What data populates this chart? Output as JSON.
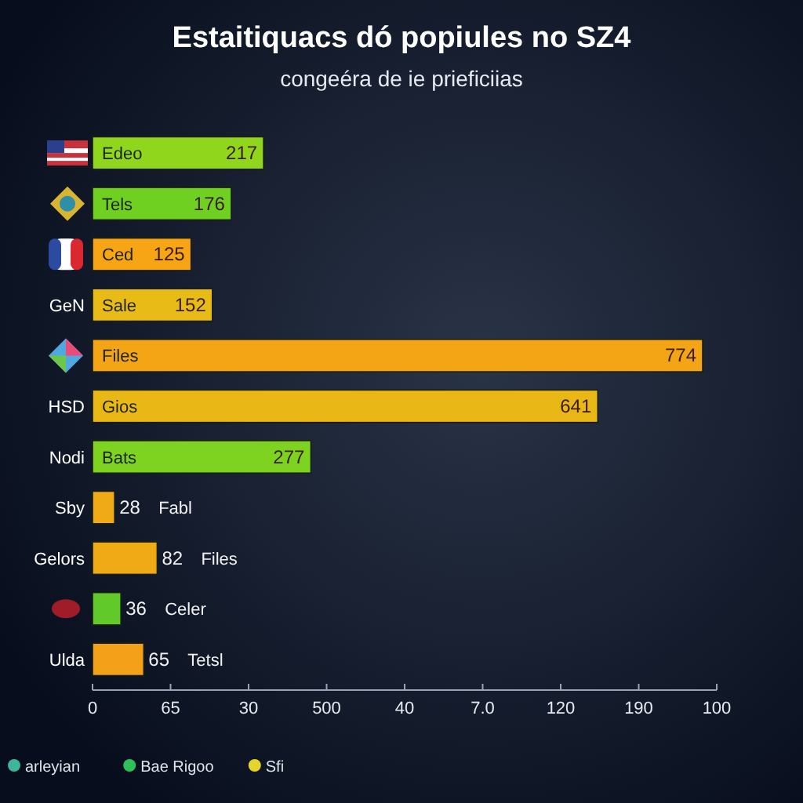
{
  "chart_data": {
    "type": "bar",
    "orientation": "horizontal",
    "title": "Estaitiquacs dó popiules no SZ4",
    "subtitle": "congeéra de ie prieficiias",
    "categories": [
      null,
      null,
      null,
      "GeN",
      null,
      "HSD",
      "Nodi",
      "Sby",
      "Gelors",
      null,
      "Ulda"
    ],
    "data_labels": true,
    "annotations": [
      "Edeo",
      "Tels",
      "Ced",
      "Sale",
      "Files",
      "Gios",
      "Bats",
      "Fabl",
      "Files",
      "Celer",
      "Tetsl",
      "0",
      "65",
      "30",
      "500",
      "40",
      "7.0",
      "120",
      "190",
      "100"
    ],
    "series": [
      {
        "values": [
          217,
          176,
          125,
          152,
          774,
          641,
          277,
          28,
          82,
          36,
          65
        ],
        "colors": [
          "#8fd61c",
          "#6fd021",
          "#f7a514",
          "#e9bb16",
          "#f4a516",
          "#eab816",
          "#7ed321",
          "#f0aa16",
          "#f0aa16",
          "#62c92a",
          "#f4a11a"
        ]
      },
      {
        "name": "arleyian",
        "color": "#3fb59a",
        "values": [
          null,
          null,
          null,
          null,
          null,
          null,
          null,
          null,
          null,
          null,
          null
        ]
      },
      {
        "name": "Bae Rigoo",
        "color": "#2ec05a",
        "values": [
          null,
          null,
          null,
          null,
          null,
          null,
          null,
          null,
          null,
          null,
          null
        ]
      },
      {
        "name": "Sfi",
        "color": "#e3d52a",
        "values": [
          null,
          null,
          null,
          null,
          null,
          null,
          null,
          null,
          null,
          null,
          null
        ]
      }
    ],
    "legend": "bottom left"
  }
}
